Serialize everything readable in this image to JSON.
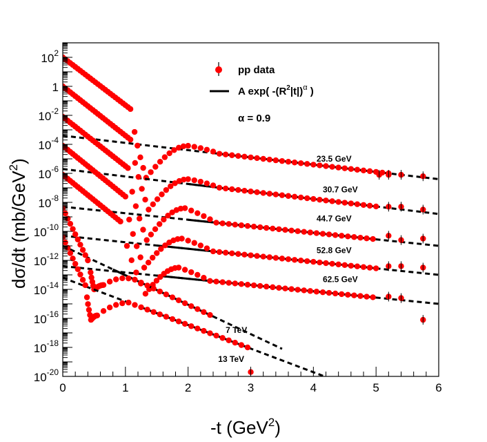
{
  "chart_data": {
    "type": "scatter",
    "xlabel": "-t (GeV",
    "xlabel_sup": "2",
    "xlabel_close": ")",
    "ylabel": "dσ/dt (mb/GeV",
    "ylabel_sup": "2",
    "ylabel_close": ")",
    "xlim": [
      0,
      6
    ],
    "ylim_log10": [
      -20,
      3
    ],
    "log_y": true,
    "x_ticks": [
      "0",
      "1",
      "2",
      "3",
      "4",
      "5",
      "6"
    ],
    "y_ticks": [
      {
        "base": "10",
        "exp": "-20",
        "value": -20
      },
      {
        "base": "10",
        "exp": "-18",
        "value": -18
      },
      {
        "base": "10",
        "exp": "-16",
        "value": -16
      },
      {
        "base": "10",
        "exp": "-14",
        "value": -14
      },
      {
        "base": "10",
        "exp": "-12",
        "value": -12
      },
      {
        "base": "10",
        "exp": "-10",
        "value": -10
      },
      {
        "base": "10",
        "exp": "-8",
        "value": -8
      },
      {
        "base": "10",
        "exp": "-6",
        "value": -6
      },
      {
        "base": "10",
        "exp": "-4",
        "value": -4
      },
      {
        "base": "10",
        "exp": "-2",
        "value": -2
      },
      {
        "base": "1",
        "exp": "",
        "value": 0
      },
      {
        "base": "10",
        "exp": "2",
        "value": 2
      }
    ],
    "legend": {
      "data_label": "pp data",
      "fit_label_prefix": "A exp( -(R",
      "fit_label_sup": "2",
      "fit_label_mid": "|t|)",
      "fit_label_alpha": "α",
      "fit_label_suffix": " )",
      "alpha_text": "α = 0.9"
    },
    "marker_color": "#ff0000",
    "fit_color": "#000000",
    "series": [
      {
        "name": "23.5 GeV",
        "label_x": 4.05,
        "label_logy": -5.2,
        "forward": {
          "x0": 0,
          "y0": 2.0,
          "slope": -3.3,
          "xend": 1.1
        },
        "dip": {
          "x": 1.33,
          "logy": -6.3
        },
        "secmax": {
          "x": 2.0,
          "logy": -4.1
        },
        "fit": {
          "x1": 0,
          "y1": -3.4,
          "x2": 6.0,
          "y2": -6.4,
          "solid_from": 2.4,
          "solid_to": 5.2
        },
        "tail": [
          [
            5.05,
            -6.1
          ],
          [
            5.2,
            -6.1
          ],
          [
            5.4,
            -6.1
          ],
          [
            5.75,
            -6.2
          ]
        ]
      },
      {
        "name": "30.7 GeV",
        "label_x": 4.15,
        "label_logy": -7.3,
        "forward": {
          "x0": 0,
          "y0": 0.0,
          "slope": -3.4,
          "xend": 1.1
        },
        "dip": {
          "x": 1.37,
          "logy": -8.5
        },
        "secmax": {
          "x": 2.0,
          "logy": -6.4
        },
        "fit": {
          "x1": 0,
          "y1": -5.7,
          "x2": 6.0,
          "y2": -8.8,
          "solid_from": 2.0,
          "solid_to": 5.0
        },
        "tail": [
          [
            5.2,
            -8.3
          ],
          [
            5.4,
            -8.3
          ],
          [
            5.75,
            -8.5
          ]
        ]
      },
      {
        "name": "44.7 GeV",
        "label_x": 4.05,
        "label_logy": -9.3,
        "forward": {
          "x0": 0,
          "y0": -2.1,
          "slope": -3.4,
          "xend": 1.05
        },
        "dip": {
          "x": 1.34,
          "logy": -10.6
        },
        "secmax": {
          "x": 1.95,
          "logy": -8.4
        },
        "fit": {
          "x1": 0,
          "y1": -8.3,
          "x2": 6.0,
          "y2": -11.0,
          "solid_from": 2.0,
          "solid_to": 5.0
        },
        "tail": [
          [
            5.2,
            -10.3
          ],
          [
            5.4,
            -10.6
          ],
          [
            5.75,
            -10.5
          ]
        ]
      },
      {
        "name": "52.8 GeV",
        "label_x": 4.05,
        "label_logy": -11.5,
        "forward": {
          "x0": 0,
          "y0": -4.1,
          "slope": -3.5,
          "xend": 1.0
        },
        "dip": {
          "x": 1.3,
          "logy": -12.5
        },
        "secmax": {
          "x": 1.9,
          "logy": -10.5
        },
        "fit": {
          "x1": 0,
          "y1": -10.3,
          "x2": 6.0,
          "y2": -13.0,
          "solid_from": 1.5,
          "solid_to": 5.0
        },
        "tail": [
          [
            5.2,
            -12.4
          ],
          [
            5.4,
            -12.4
          ],
          [
            5.75,
            -12.5
          ]
        ]
      },
      {
        "name": "62.5 GeV",
        "label_x": 4.15,
        "label_logy": -13.5,
        "forward": {
          "x0": 0,
          "y0": -6.1,
          "slope": -3.5,
          "xend": 0.95
        },
        "dip": {
          "x": 1.32,
          "logy": -14.3
        },
        "secmax": {
          "x": 1.85,
          "logy": -12.5
        },
        "fit": {
          "x1": 0,
          "y1": -12.4,
          "x2": 6.0,
          "y2": -15.0,
          "solid_from": 1.5,
          "solid_to": 5.0
        },
        "tail": [
          [
            5.2,
            -14.5
          ],
          [
            5.4,
            -14.6
          ],
          [
            5.75,
            -16.1
          ]
        ]
      },
      {
        "name": "7 TeV",
        "label_x": 2.6,
        "label_logy": -17.0,
        "forward": {
          "x0": 0,
          "y0": -8.4,
          "slope": -9.0,
          "xend": 0.43
        },
        "dip": {
          "x": 0.5,
          "logy": -14.0
        },
        "secmax": {
          "x": 0.65,
          "logy": -13.7
        },
        "fit": {
          "x1": 0,
          "y1": -11.0,
          "x2": 3.5,
          "y2": -18.1,
          "solid_from": 0.8,
          "solid_to": 2.4
        },
        "tail": []
      },
      {
        "name": "13 TeV",
        "label_x": 2.48,
        "label_logy": -19.0,
        "forward": {
          "x0": 0,
          "y0": -10.4,
          "slope": -9.2,
          "xend": 0.37
        },
        "dip": {
          "x": 0.45,
          "logy": -16.1
        },
        "secmax": {
          "x": 0.55,
          "logy": -15.8
        },
        "fit": {
          "x1": 0,
          "y1": -13.2,
          "x2": 4.3,
          "y2": -20.2,
          "solid_from": 1.4,
          "solid_to": 3.0
        },
        "tail": [
          [
            3.0,
            -19.7
          ]
        ]
      }
    ]
  }
}
